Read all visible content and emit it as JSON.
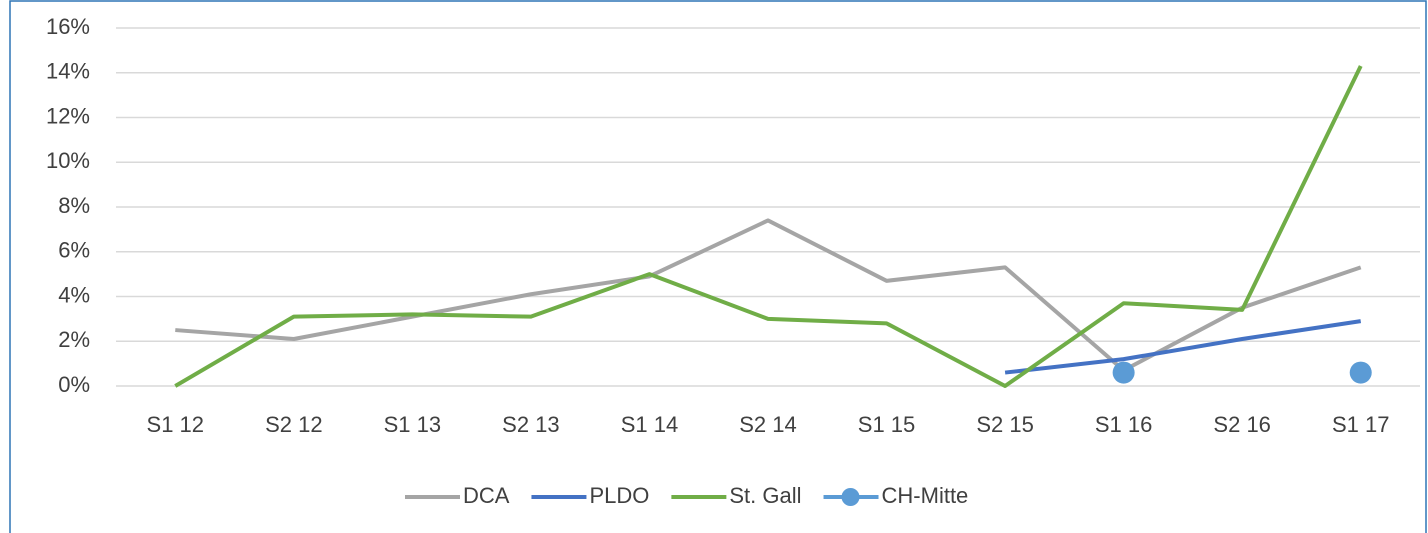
{
  "chart_data": {
    "type": "line",
    "categories": [
      "S1 12",
      "S2 12",
      "S1 13",
      "S2 13",
      "S1 14",
      "S2 14",
      "S1 15",
      "S2 15",
      "S1 16",
      "S2 16",
      "S1 17"
    ],
    "series": [
      {
        "name": "DCA",
        "color": "#a5a5a5",
        "values": [
          2.5,
          2.1,
          3.1,
          4.1,
          4.9,
          7.4,
          4.7,
          5.3,
          0.7,
          3.5,
          5.3
        ]
      },
      {
        "name": "PLDO",
        "color": "#4472c4",
        "values": [
          null,
          null,
          null,
          null,
          null,
          null,
          null,
          0.6,
          1.2,
          2.1,
          2.9
        ]
      },
      {
        "name": "St. Gall",
        "color": "#70ad47",
        "values": [
          0,
          3.1,
          3.2,
          3.1,
          5.0,
          3.0,
          2.8,
          0,
          3.7,
          3.4,
          14.3
        ]
      },
      {
        "name": "CH-Mitte",
        "color": "#5b9bd5",
        "marker": true,
        "values": [
          null,
          null,
          null,
          null,
          null,
          null,
          null,
          null,
          0.6,
          null,
          0.6
        ]
      }
    ],
    "ylim": [
      0,
      16
    ],
    "yticks": [
      {
        "value": 0,
        "label": "0%"
      },
      {
        "value": 2,
        "label": "2%"
      },
      {
        "value": 4,
        "label": "4%"
      },
      {
        "value": 6,
        "label": "6%"
      },
      {
        "value": 8,
        "label": "8%"
      },
      {
        "value": 10,
        "label": "10%"
      },
      {
        "value": 12,
        "label": "12%"
      },
      {
        "value": 14,
        "label": "14%"
      },
      {
        "value": 16,
        "label": "16%"
      }
    ],
    "grid": true,
    "legend": "bottom"
  }
}
